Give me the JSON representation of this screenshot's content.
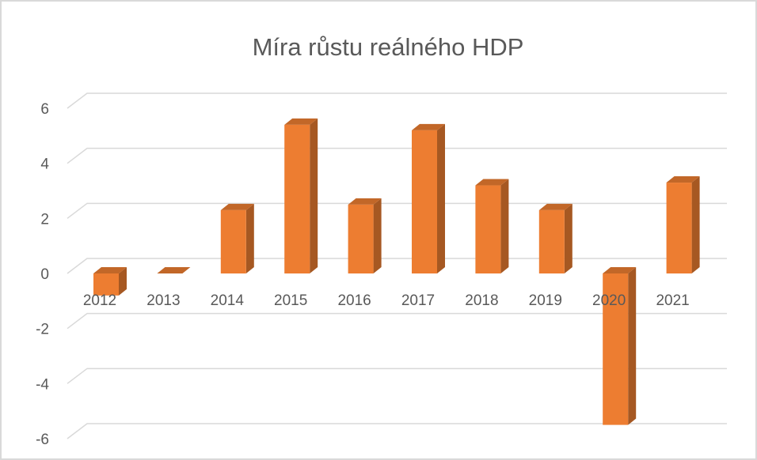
{
  "chart_data": {
    "type": "bar",
    "title": "Míra růstu reálného HDP",
    "categories": [
      "2012",
      "2013",
      "2014",
      "2015",
      "2016",
      "2017",
      "2018",
      "2019",
      "2020",
      "2021"
    ],
    "values": [
      -0.8,
      0.0,
      2.3,
      5.4,
      2.5,
      5.2,
      3.2,
      2.3,
      -5.5,
      3.3
    ],
    "color": "#ed7d31",
    "ylim": [
      -6,
      6
    ],
    "yticks": [
      -6,
      -4,
      -2,
      0,
      2,
      4,
      6
    ],
    "grid": true
  }
}
